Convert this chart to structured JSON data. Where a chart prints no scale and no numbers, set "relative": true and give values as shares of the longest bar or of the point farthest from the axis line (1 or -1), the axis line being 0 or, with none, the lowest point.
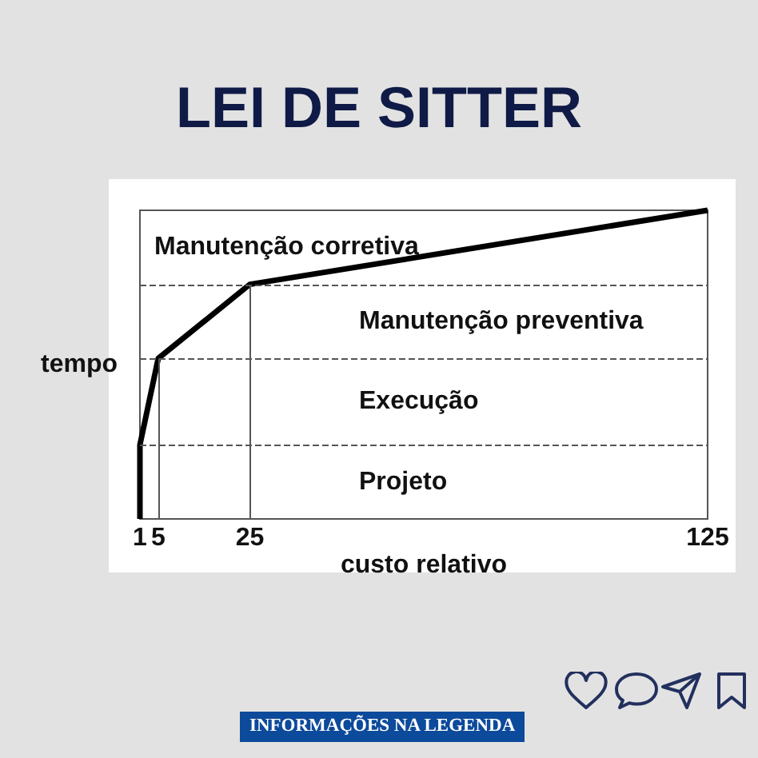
{
  "chart_data": {
    "type": "line",
    "title": "LEI DE SITTER",
    "xlabel": "custo relativo",
    "ylabel": "tempo",
    "annotations": [
      "Manutenção corretiva",
      "Manutenção preventiva",
      "Execução",
      "Projeto",
      "INFORMAÇÕES NA LEGENDA"
    ],
    "relative": true,
    "marker": "none",
    "x": [
      1,
      1,
      5,
      25,
      125
    ],
    "series": [
      {
        "color": "#000000",
        "values": [
          0,
          0.24,
          0.52,
          0.76,
          1
        ]
      }
    ],
    "xlim": [
      1,
      125
    ],
    "xticks": [
      1,
      5,
      25,
      125
    ],
    "ref_lines": [
      {
        "axis": "y",
        "value": 0.24,
        "line_style": "dashed",
        "color": "#555555"
      },
      {
        "axis": "y",
        "value": 0.52,
        "line_style": "dashed",
        "color": "#555555"
      },
      {
        "axis": "y",
        "value": 0.76,
        "line_style": "dashed",
        "color": "#555555"
      },
      {
        "axis": "x",
        "value": 5,
        "color": "#555555"
      },
      {
        "axis": "x",
        "value": 25,
        "color": "#555555"
      }
    ]
  }
}
